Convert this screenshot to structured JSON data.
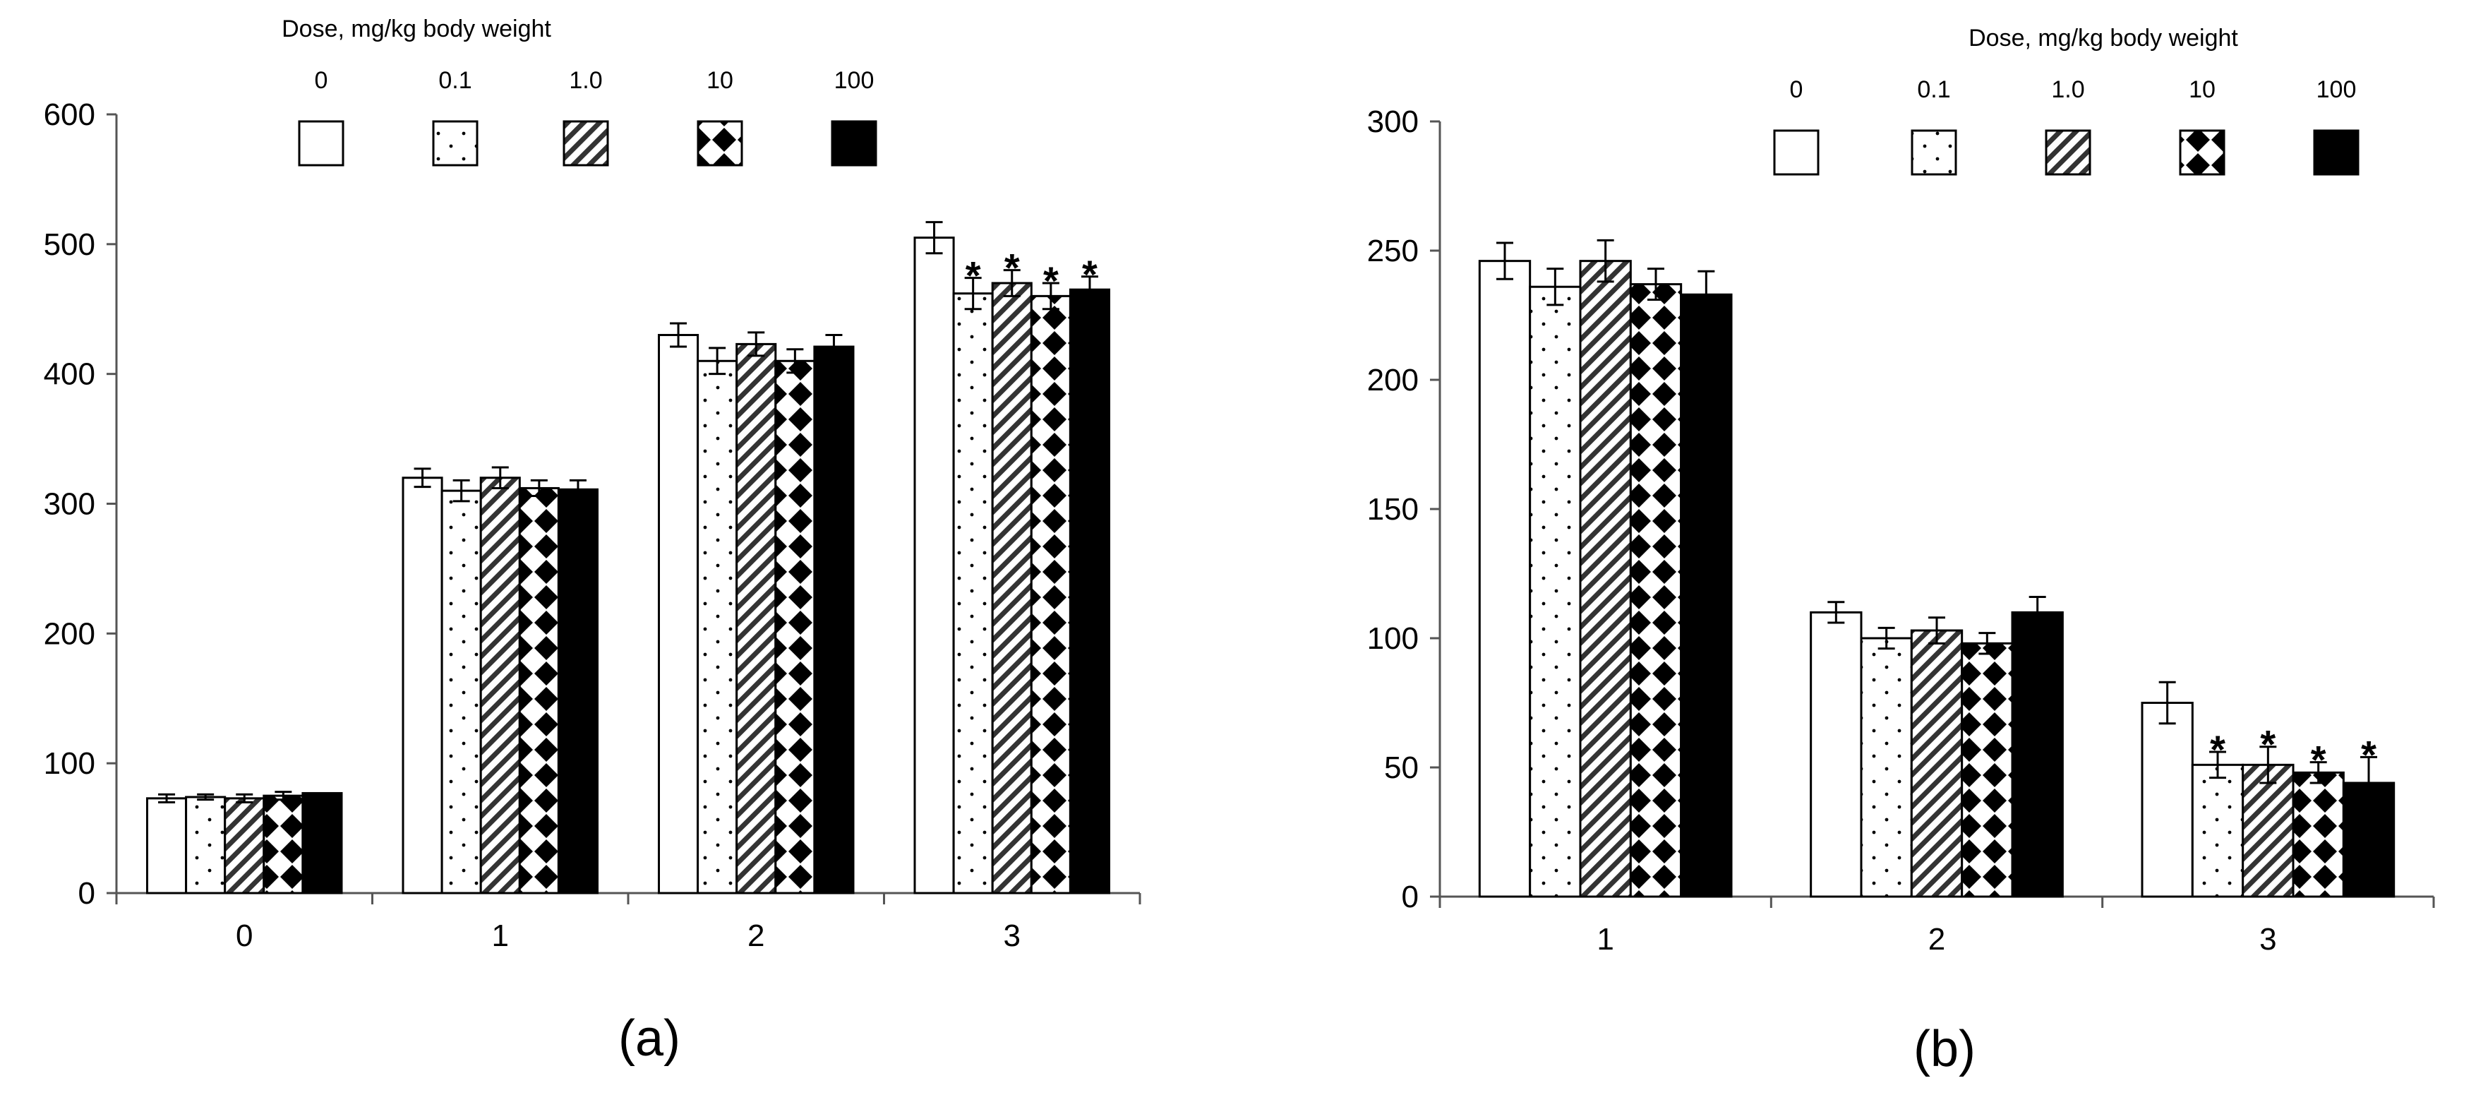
{
  "legend": {
    "title": "Dose, mg/kg body weight",
    "doses": [
      "0",
      "0.1",
      "1.0",
      "10",
      "100"
    ]
  },
  "chart_data": [
    {
      "type": "bar",
      "panel_label": "(a)",
      "categories": [
        "0",
        "1",
        "2",
        "3"
      ],
      "ylim": [
        0,
        600
      ],
      "yticks": [
        0,
        100,
        200,
        300,
        400,
        500,
        600
      ],
      "grid": false,
      "legend_placement": "top",
      "series": [
        {
          "name": "0",
          "fill": "white",
          "values": [
            73,
            320,
            430,
            505
          ],
          "errors": [
            3,
            7,
            9,
            12
          ],
          "significant": [
            false,
            false,
            false,
            false
          ]
        },
        {
          "name": "0.1",
          "fill": "dots",
          "values": [
            74,
            310,
            410,
            462
          ],
          "errors": [
            2,
            8,
            10,
            12
          ],
          "significant": [
            false,
            false,
            false,
            true
          ]
        },
        {
          "name": "1.0",
          "fill": "hatch",
          "values": [
            73,
            320,
            423,
            470
          ],
          "errors": [
            3,
            8,
            9,
            10
          ],
          "significant": [
            false,
            false,
            false,
            true
          ]
        },
        {
          "name": "10",
          "fill": "diamond",
          "values": [
            75,
            312,
            410,
            460
          ],
          "errors": [
            3,
            6,
            9,
            10
          ],
          "significant": [
            false,
            false,
            false,
            true
          ]
        },
        {
          "name": "100",
          "fill": "black",
          "values": [
            77,
            311,
            421,
            465
          ],
          "errors": [
            0,
            7,
            9,
            10
          ],
          "significant": [
            false,
            false,
            false,
            true
          ]
        }
      ]
    },
    {
      "type": "bar",
      "panel_label": "(b)",
      "categories": [
        "1",
        "2",
        "3"
      ],
      "ylim": [
        0,
        300
      ],
      "yticks": [
        0,
        50,
        100,
        150,
        200,
        250,
        300
      ],
      "grid": false,
      "legend_placement": "top",
      "series": [
        {
          "name": "0",
          "fill": "white",
          "values": [
            246,
            110,
            75
          ],
          "errors": [
            7,
            4,
            8
          ],
          "significant": [
            false,
            false,
            false
          ]
        },
        {
          "name": "0.1",
          "fill": "dots",
          "values": [
            236,
            100,
            51
          ],
          "errors": [
            7,
            4,
            5
          ],
          "significant": [
            false,
            false,
            true
          ]
        },
        {
          "name": "1.0",
          "fill": "hatch",
          "values": [
            246,
            103,
            51
          ],
          "errors": [
            8,
            5,
            7
          ],
          "significant": [
            false,
            false,
            true
          ]
        },
        {
          "name": "10",
          "fill": "diamond",
          "values": [
            237,
            98,
            48
          ],
          "errors": [
            6,
            4,
            4
          ],
          "significant": [
            false,
            false,
            true
          ]
        },
        {
          "name": "100",
          "fill": "black",
          "values": [
            233,
            110,
            44
          ],
          "errors": [
            9,
            6,
            10
          ],
          "significant": [
            false,
            false,
            true
          ]
        }
      ]
    }
  ]
}
